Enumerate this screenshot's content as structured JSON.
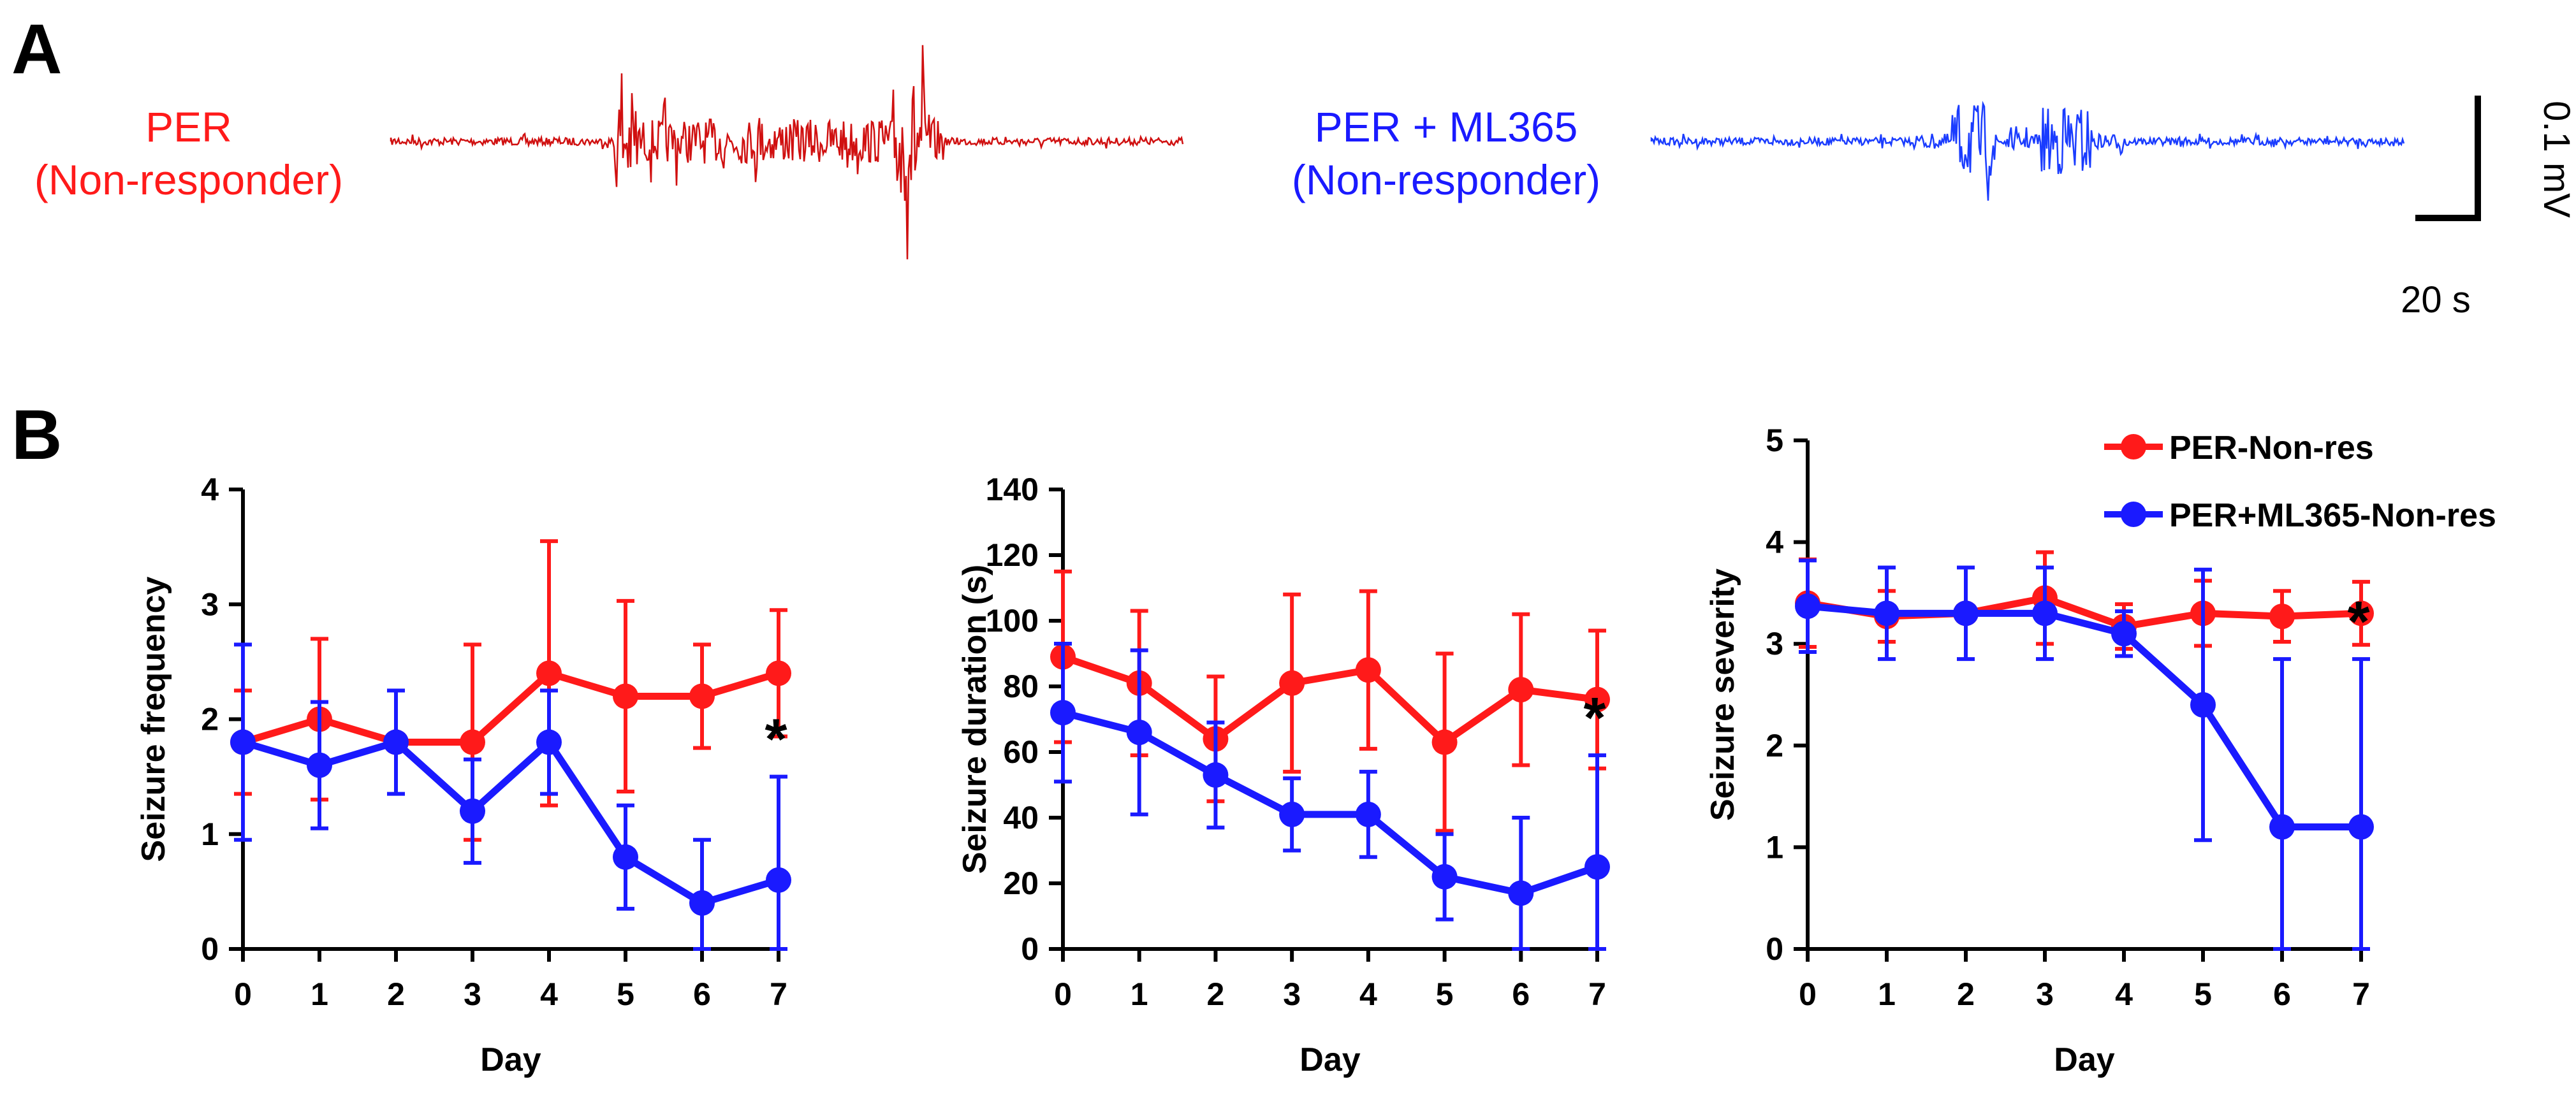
{
  "colors": {
    "red": "#ff1a1a",
    "blue": "#1a1aff",
    "axis": "#000000"
  },
  "panel_a": {
    "label": "A",
    "left": {
      "line1": "PER",
      "line2": "(Non-responder)"
    },
    "right": {
      "line1": "PER + ML365",
      "line2": "(Non-responder)"
    },
    "scale_bar": {
      "vertical": "0.1 mV",
      "horizontal": "20 s"
    }
  },
  "panel_b": {
    "label": "B"
  },
  "legend": [
    "PER-Non-res",
    "PER+ML365-Non-res"
  ],
  "chart_data": [
    {
      "type": "line",
      "xlabel": "Day",
      "ylabel": "Seizure frequency",
      "x": [
        0,
        1,
        2,
        3,
        4,
        5,
        6,
        7
      ],
      "ylim": [
        0,
        4
      ],
      "yticks": [
        0,
        1,
        2,
        3,
        4
      ],
      "series": [
        {
          "name": "PER-Non-res",
          "color": "red",
          "values": [
            1.8,
            2.0,
            1.8,
            1.8,
            2.4,
            2.2,
            2.2,
            2.4
          ],
          "error": [
            0.45,
            0.7,
            0.05,
            0.85,
            1.15,
            0.83,
            0.45,
            0.55
          ]
        },
        {
          "name": "PER+ML365-Non-res",
          "color": "blue",
          "values": [
            1.8,
            1.6,
            1.8,
            1.2,
            1.8,
            0.8,
            0.4,
            0.6
          ],
          "error": [
            0.85,
            0.55,
            0.45,
            0.45,
            0.45,
            0.45,
            0.55,
            0.9
          ]
        }
      ],
      "annotations": [
        {
          "x": 7,
          "text": "*"
        }
      ]
    },
    {
      "type": "line",
      "xlabel": "Day",
      "ylabel": "Seizure duration (s)",
      "x": [
        0,
        1,
        2,
        3,
        4,
        5,
        6,
        7
      ],
      "ylim": [
        0,
        140
      ],
      "yticks": [
        0,
        20,
        40,
        60,
        80,
        100,
        120,
        140
      ],
      "series": [
        {
          "name": "PER-Non-res",
          "color": "red",
          "values": [
            89,
            81,
            64,
            81,
            85,
            63,
            79,
            76
          ],
          "error": [
            26,
            22,
            19,
            27,
            24,
            27,
            23,
            21
          ]
        },
        {
          "name": "PER+ML365-Non-res",
          "color": "blue",
          "values": [
            72,
            66,
            53,
            41,
            41,
            22,
            17,
            25
          ],
          "error": [
            21,
            25,
            16,
            11,
            13,
            13,
            23,
            34
          ]
        }
      ],
      "annotations": [
        {
          "x": 7,
          "text": "*"
        }
      ]
    },
    {
      "type": "line",
      "xlabel": "Day",
      "ylabel": "Seizure severity",
      "x": [
        0,
        1,
        2,
        3,
        4,
        5,
        6,
        7
      ],
      "ylim": [
        0,
        5
      ],
      "yticks": [
        0,
        1,
        2,
        3,
        4,
        5
      ],
      "series": [
        {
          "name": "PER-Non-res",
          "color": "red",
          "values": [
            3.4,
            3.27,
            3.3,
            3.45,
            3.17,
            3.3,
            3.27,
            3.3
          ],
          "error": [
            0.43,
            0.25,
            0.05,
            0.45,
            0.22,
            0.32,
            0.25,
            0.31
          ]
        },
        {
          "name": "PER+ML365-Non-res",
          "color": "blue",
          "values": [
            3.37,
            3.3,
            3.3,
            3.3,
            3.1,
            2.4,
            1.2,
            1.2
          ],
          "error": [
            0.45,
            0.45,
            0.45,
            0.45,
            0.22,
            1.33,
            1.65,
            1.65
          ]
        }
      ],
      "annotations": [
        {
          "x": 7,
          "text": "*"
        }
      ]
    }
  ]
}
